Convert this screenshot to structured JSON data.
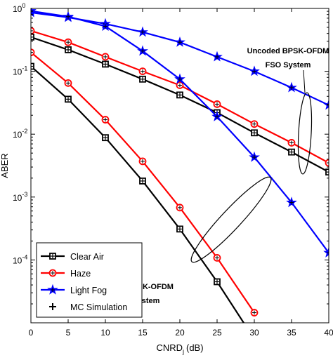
{
  "chart_data": {
    "type": "line",
    "xlabel": "CNRD",
    "xlabel_sub": "j",
    "xlabel_unit": "(dB)",
    "ylabel": "ABER",
    "xlim": [
      0,
      40
    ],
    "ylim": [
      1e-05,
      1
    ],
    "y_scale": "log",
    "x_ticks": [
      0,
      5,
      10,
      15,
      20,
      25,
      30,
      35,
      40
    ],
    "x_tick_labels": [
      "0",
      "5",
      "10",
      "15",
      "20",
      "25",
      "30",
      "35",
      "40"
    ],
    "y_ticks": [
      0.0001,
      0.001,
      0.01,
      0.1,
      1
    ],
    "y_tick_labels": [
      {
        "base": "10",
        "exp": "-4"
      },
      {
        "base": "10",
        "exp": "-3"
      },
      {
        "base": "10",
        "exp": "-2"
      },
      {
        "base": "10",
        "exp": "-1"
      },
      {
        "base": "10",
        "exp": "0"
      }
    ],
    "grid": false,
    "legend_position": "bottom-left",
    "legend": [
      {
        "label": "Clear Air",
        "color": "#000000",
        "marker": "square"
      },
      {
        "label": "Haze",
        "color": "#ff0000",
        "marker": "circle"
      },
      {
        "label": "Light Fog",
        "color": "#0000ff",
        "marker": "star"
      },
      {
        "label": "MC Simulation",
        "color": "#000000",
        "marker": "plus"
      }
    ],
    "series": [
      {
        "group": "uncoded",
        "color": "#000000",
        "marker": "square",
        "x": [
          0,
          5,
          10,
          15,
          20,
          25,
          30,
          35,
          40
        ],
        "y": [
          0.35,
          0.22,
          0.13,
          0.075,
          0.042,
          0.022,
          0.0105,
          0.0052,
          0.0025
        ]
      },
      {
        "group": "uncoded",
        "color": "#ff0000",
        "marker": "circle",
        "x": [
          0,
          5,
          10,
          15,
          20,
          25,
          30,
          35,
          40
        ],
        "y": [
          0.44,
          0.29,
          0.17,
          0.1,
          0.06,
          0.03,
          0.0145,
          0.0073,
          0.0035
        ]
      },
      {
        "group": "uncoded",
        "color": "#0000ff",
        "marker": "star",
        "x": [
          0,
          5,
          10,
          15,
          20,
          25,
          30,
          35,
          40
        ],
        "y": [
          0.86,
          0.72,
          0.57,
          0.42,
          0.29,
          0.17,
          0.1,
          0.055,
          0.029
        ]
      },
      {
        "group": "coded",
        "color": "#000000",
        "marker": "square",
        "x": [
          0,
          5,
          10,
          15,
          20,
          25,
          30
        ],
        "y": [
          0.12,
          0.036,
          0.0088,
          0.0018,
          0.00031,
          4.5e-05,
          5.5e-06
        ]
      },
      {
        "group": "coded",
        "color": "#ff0000",
        "marker": "circle",
        "x": [
          0,
          5,
          10,
          15,
          20,
          25,
          30
        ],
        "y": [
          0.2,
          0.065,
          0.017,
          0.0037,
          0.00068,
          0.000108,
          1.45e-05
        ]
      },
      {
        "group": "coded",
        "color": "#0000ff",
        "marker": "star",
        "x": [
          0,
          5,
          10,
          15,
          20,
          25,
          30,
          35,
          40
        ],
        "y": [
          0.91,
          0.74,
          0.52,
          0.21,
          0.075,
          0.019,
          0.0043,
          0.00082,
          0.00013
        ]
      }
    ],
    "annotations": [
      {
        "id": "uncoded",
        "lines": [
          "Uncoded BPSK-OFDM",
          "FSO System"
        ]
      },
      {
        "id": "coded",
        "lines": [
          "Coded BPSK-OFDM",
          "FSO System"
        ]
      }
    ]
  }
}
